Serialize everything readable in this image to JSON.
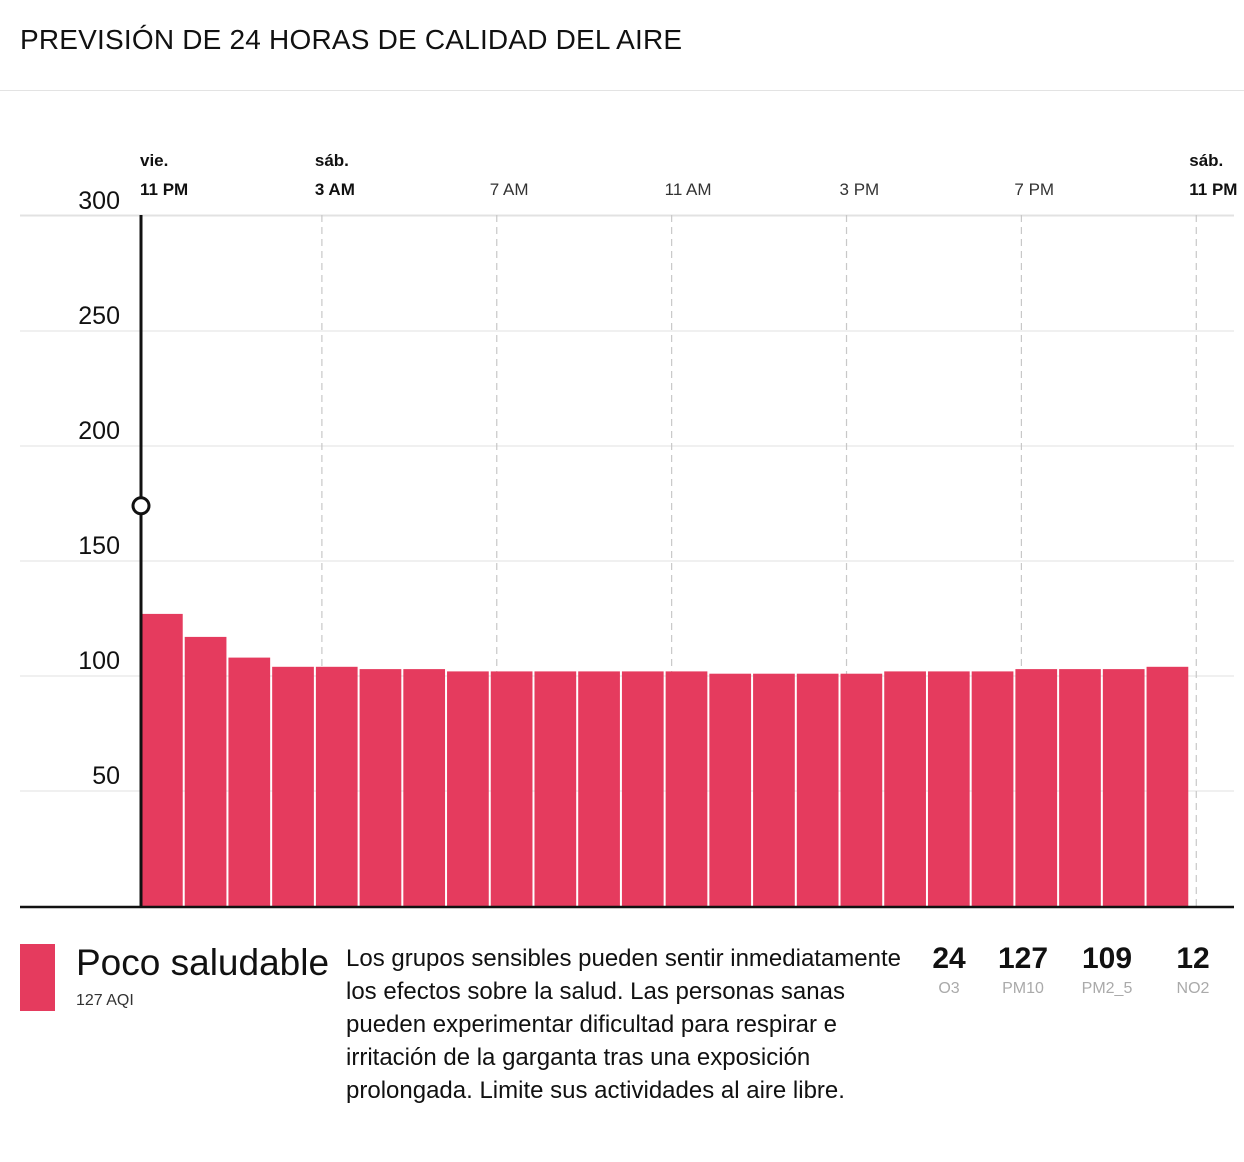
{
  "header": {
    "title": "PREVISIÓN DE 24 HORAS DE CALIDAD DEL AIRE"
  },
  "chart_data": {
    "type": "bar",
    "title": "PREVISIÓN DE 24 HORAS DE CALIDAD DEL AIRE",
    "xlabel": "",
    "ylabel": "",
    "ylim": [
      0,
      310
    ],
    "yticks": [
      50,
      100,
      150,
      200,
      250,
      300
    ],
    "grid": true,
    "bar_color": "#e53b5e",
    "current_marker_value": 174,
    "x_ticks": [
      {
        "index": 0,
        "day": "vie.",
        "time": "11 PM",
        "bold": true
      },
      {
        "index": 4,
        "day": "sáb.",
        "time": "3 AM",
        "bold": true
      },
      {
        "index": 8,
        "day": "",
        "time": "7 AM",
        "bold": false
      },
      {
        "index": 12,
        "day": "",
        "time": "11 AM",
        "bold": false
      },
      {
        "index": 16,
        "day": "",
        "time": "3 PM",
        "bold": false
      },
      {
        "index": 20,
        "day": "",
        "time": "7 PM",
        "bold": false
      },
      {
        "index": 24,
        "day": "sáb.",
        "time": "11 PM",
        "bold": true
      }
    ],
    "values": [
      127,
      117,
      108,
      104,
      104,
      103,
      103,
      102,
      102,
      102,
      102,
      102,
      102,
      101,
      101,
      101,
      101,
      102,
      102,
      102,
      103,
      103,
      103,
      104
    ]
  },
  "footer": {
    "level_color": "#e53b5e",
    "level_label": "Poco saludable",
    "aqi_text": "127 AQI",
    "description": "Los grupos sensibles pueden sentir inmediatamente los efectos sobre la salud. Las personas sanas pueden experimentar dificultad para respirar e irritación de la garganta tras una exposición prolongada. Limite sus actividades al aire libre.",
    "pollutants": [
      {
        "value": "24",
        "label": "O3"
      },
      {
        "value": "127",
        "label": "PM10"
      },
      {
        "value": "109",
        "label": "PM2_5"
      },
      {
        "value": "12",
        "label": "NO2"
      }
    ]
  }
}
